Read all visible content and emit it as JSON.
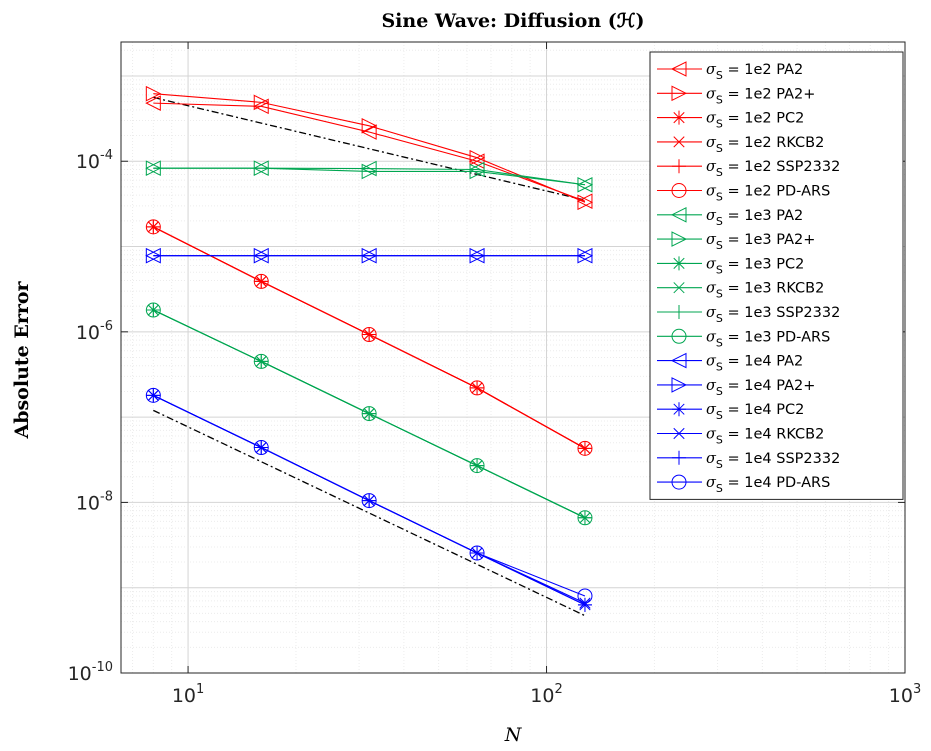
{
  "chart_data": {
    "type": "line",
    "title": "Sine Wave: Diffusion (ℋ)",
    "xlabel": "N",
    "ylabel": "Absolute Error",
    "x_scale": "log",
    "y_scale": "log",
    "xlim": [
      6.5,
      1000
    ],
    "ylim": [
      1e-10,
      0.0025
    ],
    "grid": true,
    "legend_position": "top-right",
    "x_ticks": [
      {
        "value": 10,
        "base": "10",
        "exp": "1"
      },
      {
        "value": 100,
        "base": "10",
        "exp": "2"
      },
      {
        "value": 1000,
        "base": "10",
        "exp": "3"
      }
    ],
    "y_ticks": [
      {
        "value": 1e-10,
        "base": "10",
        "exp": "-10"
      },
      {
        "value": 1e-08,
        "base": "10",
        "exp": "-8"
      },
      {
        "value": 1e-06,
        "base": "10",
        "exp": "-6"
      },
      {
        "value": 0.0001,
        "base": "10",
        "exp": "-4"
      }
    ],
    "x": [
      8,
      16,
      32,
      64,
      128
    ],
    "series": [
      {
        "name": "σS = 1e2  PA2",
        "sigma": "1e2",
        "method": "PA2",
        "color": "#ff0000",
        "marker": "triangle-left",
        "values": [
          0.00048,
          0.00044,
          0.00022,
          0.0001,
          3.4e-05
        ]
      },
      {
        "name": "σS = 1e2  PA2+",
        "sigma": "1e2",
        "method": "PA2+",
        "color": "#ff0000",
        "marker": "triangle-right",
        "values": [
          0.00062,
          0.00049,
          0.00026,
          0.00011,
          3.3e-05
        ]
      },
      {
        "name": "σS = 1e2  PC2",
        "sigma": "1e2",
        "method": "PC2",
        "color": "#ff0000",
        "marker": "asterisk",
        "values": [
          1.7e-05,
          3.9e-06,
          9.3e-07,
          2.2e-07,
          4.3e-08
        ]
      },
      {
        "name": "σS = 1e2  RKCB2",
        "sigma": "1e2",
        "method": "RKCB2",
        "color": "#ff0000",
        "marker": "x",
        "values": [
          1.7e-05,
          3.9e-06,
          9.3e-07,
          2.2e-07,
          4.3e-08
        ]
      },
      {
        "name": "σS = 1e2  SSP2332",
        "sigma": "1e2",
        "method": "SSP2332",
        "color": "#ff0000",
        "marker": "plus",
        "values": [
          1.7e-05,
          3.9e-06,
          9.3e-07,
          2.2e-07,
          4.3e-08
        ]
      },
      {
        "name": "σS = 1e2  PD-ARS",
        "sigma": "1e2",
        "method": "PD-ARS",
        "color": "#ff0000",
        "marker": "circle",
        "values": [
          1.7e-05,
          3.9e-06,
          9.3e-07,
          2.2e-07,
          4.3e-08
        ]
      },
      {
        "name": "σS = 1e3  PA2",
        "sigma": "1e3",
        "method": "PA2",
        "color": "#00a651",
        "marker": "triangle-left",
        "values": [
          8.3e-05,
          8.3e-05,
          8.2e-05,
          8e-05,
          5.3e-05
        ]
      },
      {
        "name": "σS = 1e3  PA2+",
        "sigma": "1e3",
        "method": "PA2+",
        "color": "#00a651",
        "marker": "triangle-right",
        "values": [
          8.3e-05,
          8.3e-05,
          7.6e-05,
          7.6e-05,
          5.3e-05
        ]
      },
      {
        "name": "σS = 1e3  PC2",
        "sigma": "1e3",
        "method": "PC2",
        "color": "#00a651",
        "marker": "asterisk",
        "values": [
          1.8e-06,
          4.5e-07,
          1.1e-07,
          2.7e-08,
          6.6e-09
        ]
      },
      {
        "name": "σS = 1e3  RKCB2",
        "sigma": "1e3",
        "method": "RKCB2",
        "color": "#00a651",
        "marker": "x",
        "values": [
          1.8e-06,
          4.5e-07,
          1.1e-07,
          2.7e-08,
          6.6e-09
        ]
      },
      {
        "name": "σS = 1e3  SSP2332",
        "sigma": "1e3",
        "method": "SSP2332",
        "color": "#00a651",
        "marker": "plus",
        "values": [
          1.8e-06,
          4.5e-07,
          1.1e-07,
          2.7e-08,
          6.6e-09
        ]
      },
      {
        "name": "σS = 1e3  PD-ARS",
        "sigma": "1e3",
        "method": "PD-ARS",
        "color": "#00a651",
        "marker": "circle",
        "values": [
          1.8e-06,
          4.5e-07,
          1.1e-07,
          2.7e-08,
          6.6e-09
        ]
      },
      {
        "name": "σS = 1e4  PA2",
        "sigma": "1e4",
        "method": "PA2",
        "color": "#0000ff",
        "marker": "triangle-left",
        "values": [
          7.8e-06,
          7.8e-06,
          7.8e-06,
          7.8e-06,
          7.8e-06
        ]
      },
      {
        "name": "σS = 1e4  PA2+",
        "sigma": "1e4",
        "method": "PA2+",
        "color": "#0000ff",
        "marker": "triangle-right",
        "values": [
          7.8e-06,
          7.8e-06,
          7.8e-06,
          7.8e-06,
          7.8e-06
        ]
      },
      {
        "name": "σS = 1e4  PC2",
        "sigma": "1e4",
        "method": "PC2",
        "color": "#0000ff",
        "marker": "asterisk",
        "values": [
          1.8e-07,
          4.4e-08,
          1.05e-08,
          2.55e-09,
          6.3e-10
        ]
      },
      {
        "name": "σS = 1e4  RKCB2",
        "sigma": "1e4",
        "method": "RKCB2",
        "color": "#0000ff",
        "marker": "x",
        "values": [
          1.8e-07,
          4.4e-08,
          1.05e-08,
          2.55e-09,
          6.6e-10
        ]
      },
      {
        "name": "σS = 1e4  SSP2332",
        "sigma": "1e4",
        "method": "SSP2332",
        "color": "#0000ff",
        "marker": "plus",
        "values": [
          1.8e-07,
          4.4e-08,
          1.05e-08,
          2.55e-09,
          6.3e-10
        ]
      },
      {
        "name": "σS = 1e4  PD-ARS",
        "sigma": "1e4",
        "method": "PD-ARS",
        "color": "#0000ff",
        "marker": "circle",
        "values": [
          1.8e-07,
          4.4e-08,
          1.05e-08,
          2.55e-09,
          8e-10
        ]
      }
    ],
    "reference_lines": [
      {
        "style": "dash-dot",
        "color": "#000000",
        "x": [
          8,
          128
        ],
        "y": [
          0.00056,
          3.5e-05
        ]
      },
      {
        "style": "dash-dot",
        "color": "#000000",
        "x": [
          8,
          128
        ],
        "y": [
          1.2e-07,
          4.7e-10
        ]
      }
    ]
  }
}
